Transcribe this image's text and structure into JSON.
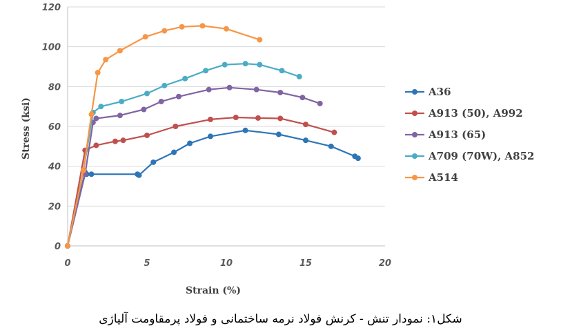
{
  "chart_data": {
    "type": "line",
    "xlabel": "Strain (%)",
    "ylabel": "Stress (ksi)",
    "xlim": [
      0,
      20
    ],
    "ylim": [
      0,
      120
    ],
    "xticks": [
      "0",
      "5",
      "10",
      "15",
      "20"
    ],
    "yticks": [
      "0",
      "20",
      "40",
      "60",
      "80",
      "100",
      "120"
    ],
    "grid": "horizontal",
    "legend": "right",
    "series": [
      {
        "name": "A36",
        "color": "#2E75B6",
        "x": [
          0,
          1.1,
          1.2,
          1.5,
          4.4,
          4.5,
          5.4,
          6.7,
          7.7,
          9.0,
          11.2,
          13.3,
          15.0,
          16.6,
          18.1,
          18.3
        ],
        "y": [
          0,
          37,
          36,
          36,
          36,
          35.5,
          42,
          47,
          51.5,
          55,
          58,
          56,
          53,
          50,
          45,
          44
        ]
      },
      {
        "name": "A913 (50), A992",
        "color": "#C0504D",
        "x": [
          0,
          1.1,
          1.8,
          3.0,
          3.5,
          5.0,
          6.8,
          9.0,
          10.6,
          12.0,
          13.4,
          15.0,
          16.8
        ],
        "y": [
          0,
          48,
          50.5,
          52.5,
          53,
          55.5,
          60,
          63.5,
          64.5,
          64.2,
          64,
          61,
          57
        ]
      },
      {
        "name": "A913 (65)",
        "color": "#8064A2",
        "x": [
          0,
          1.1,
          1.6,
          1.8,
          3.3,
          4.8,
          5.9,
          7.0,
          8.9,
          10.2,
          11.9,
          13.4,
          14.8,
          15.9
        ],
        "y": [
          0,
          36,
          62,
          64,
          65.5,
          68.5,
          72.5,
          75,
          78.5,
          79.5,
          78.5,
          77,
          74.5,
          71.5
        ]
      },
      {
        "name": "A709 (70W), A852",
        "color": "#4BACC6",
        "x": [
          0,
          1.0,
          1.6,
          2.1,
          3.4,
          5.0,
          6.1,
          7.4,
          8.7,
          9.9,
          11.2,
          12.1,
          13.5,
          14.6
        ],
        "y": [
          0,
          38,
          67,
          70,
          72.5,
          76.5,
          80.5,
          84,
          88,
          91,
          91.5,
          91,
          88,
          85
        ]
      },
      {
        "name": "A514",
        "color": "#F79646",
        "x": [
          0,
          1.0,
          1.5,
          1.9,
          2.4,
          3.3,
          4.9,
          6.1,
          7.2,
          8.5,
          10.0,
          12.1
        ],
        "y": [
          0,
          38,
          66,
          87,
          93.5,
          98,
          105,
          108,
          110,
          110.5,
          109,
          103.5
        ]
      }
    ]
  },
  "caption": "شکل۱: نمودار تنش - کرنش فولاد نرمه ساختمانی و فولاد پرمقاومت آلیاژی"
}
